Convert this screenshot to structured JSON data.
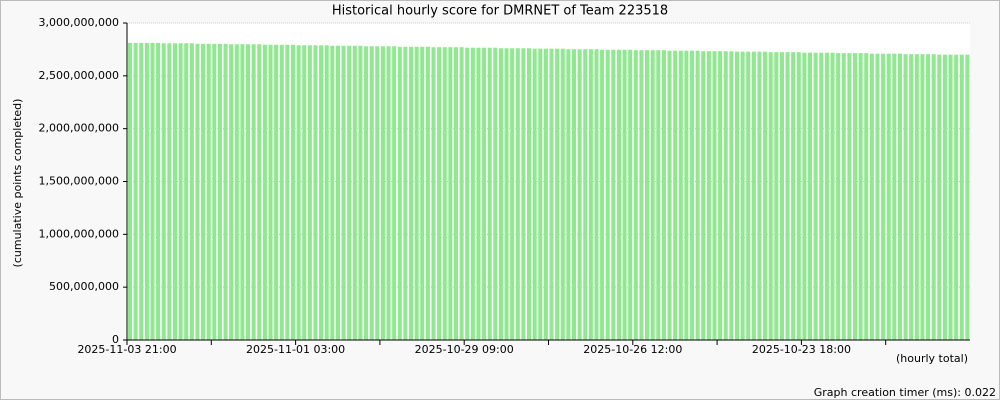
{
  "chart_data": {
    "type": "bar",
    "title": "Historical hourly score for DMRNET of Team 223518",
    "y_label": "(cumulative points completed)",
    "x_label": "(hourly total)",
    "footer": "Graph creation timer (ms): 0.022",
    "color": "#90e890",
    "grid": true,
    "ylim": [
      0,
      3000000000
    ],
    "yticks": [
      0,
      {
        "value": 500000000,
        "label": "500,000,000"
      },
      {
        "value": 1000000000,
        "label": "1,000,000,000"
      },
      {
        "value": 1500000000,
        "label": "1,500,000,000"
      },
      {
        "value": 2000000000,
        "label": "2,000,000,000"
      },
      {
        "value": 2500000000,
        "label": "2,500,000,000"
      },
      {
        "value": 3000000000,
        "label": "3,000,000,000"
      }
    ],
    "categories": [
      "2025-11-03 21:00",
      null,
      null,
      null,
      null,
      null,
      null,
      null,
      null,
      null,
      null,
      null,
      null,
      null,
      null,
      null,
      null,
      null,
      null,
      null,
      null,
      null,
      null,
      null,
      null,
      null,
      null,
      null,
      null,
      null,
      "2025-11-01 03:00",
      null,
      null,
      null,
      null,
      null,
      null,
      null,
      null,
      null,
      null,
      null,
      null,
      null,
      null,
      null,
      null,
      null,
      null,
      null,
      null,
      null,
      null,
      null,
      null,
      null,
      null,
      null,
      null,
      null,
      "2025-10-29 09:00",
      null,
      null,
      null,
      null,
      null,
      null,
      null,
      null,
      null,
      null,
      null,
      null,
      null,
      null,
      null,
      null,
      null,
      null,
      null,
      null,
      null,
      null,
      null,
      null,
      null,
      null,
      null,
      null,
      null,
      "2025-10-26 12:00",
      null,
      null,
      null,
      null,
      null,
      null,
      null,
      null,
      null,
      null,
      null,
      null,
      null,
      null,
      null,
      null,
      null,
      null,
      null,
      null,
      null,
      null,
      null,
      null,
      null,
      null,
      null,
      null,
      null,
      "2025-10-23 18:00",
      null,
      null,
      null,
      null,
      null,
      null,
      null,
      null,
      null,
      null,
      null,
      null,
      null,
      null,
      null,
      null,
      null,
      null,
      null,
      null,
      null,
      null,
      null,
      null,
      null,
      null,
      null,
      null,
      null
    ],
    "values": [
      2812000000,
      2812000000,
      2812000000,
      2812000000,
      2812000000,
      2812000000,
      2808000000,
      2808000000,
      2808000000,
      2808000000,
      2808000000,
      2808000000,
      2803000000,
      2803000000,
      2803000000,
      2803000000,
      2803000000,
      2803000000,
      2799000000,
      2799000000,
      2799000000,
      2799000000,
      2799000000,
      2799000000,
      2794000000,
      2794000000,
      2794000000,
      2794000000,
      2794000000,
      2794000000,
      2789000000,
      2789000000,
      2789000000,
      2789000000,
      2789000000,
      2789000000,
      2785000000,
      2785000000,
      2785000000,
      2785000000,
      2785000000,
      2785000000,
      2780000000,
      2780000000,
      2780000000,
      2780000000,
      2780000000,
      2780000000,
      2775000000,
      2775000000,
      2775000000,
      2775000000,
      2775000000,
      2775000000,
      2771000000,
      2771000000,
      2771000000,
      2771000000,
      2771000000,
      2771000000,
      2766000000,
      2766000000,
      2766000000,
      2766000000,
      2766000000,
      2766000000,
      2761000000,
      2761000000,
      2761000000,
      2761000000,
      2761000000,
      2761000000,
      2757000000,
      2757000000,
      2757000000,
      2757000000,
      2757000000,
      2757000000,
      2752000000,
      2752000000,
      2752000000,
      2752000000,
      2752000000,
      2752000000,
      2747000000,
      2747000000,
      2747000000,
      2747000000,
      2747000000,
      2747000000,
      2743000000,
      2743000000,
      2743000000,
      2743000000,
      2743000000,
      2743000000,
      2738000000,
      2738000000,
      2738000000,
      2738000000,
      2738000000,
      2738000000,
      2733000000,
      2733000000,
      2733000000,
      2733000000,
      2733000000,
      2733000000,
      2729000000,
      2729000000,
      2729000000,
      2729000000,
      2729000000,
      2729000000,
      2724000000,
      2724000000,
      2724000000,
      2724000000,
      2724000000,
      2724000000,
      2719000000,
      2719000000,
      2719000000,
      2719000000,
      2719000000,
      2719000000,
      2715000000,
      2715000000,
      2715000000,
      2715000000,
      2715000000,
      2715000000,
      2710000000,
      2710000000,
      2710000000,
      2710000000,
      2710000000,
      2710000000,
      2705000000,
      2705000000,
      2705000000,
      2705000000,
      2705000000,
      2705000000,
      2700000000,
      2700000000,
      2700000000,
      2700000000,
      2700000000,
      2700000000
    ]
  }
}
